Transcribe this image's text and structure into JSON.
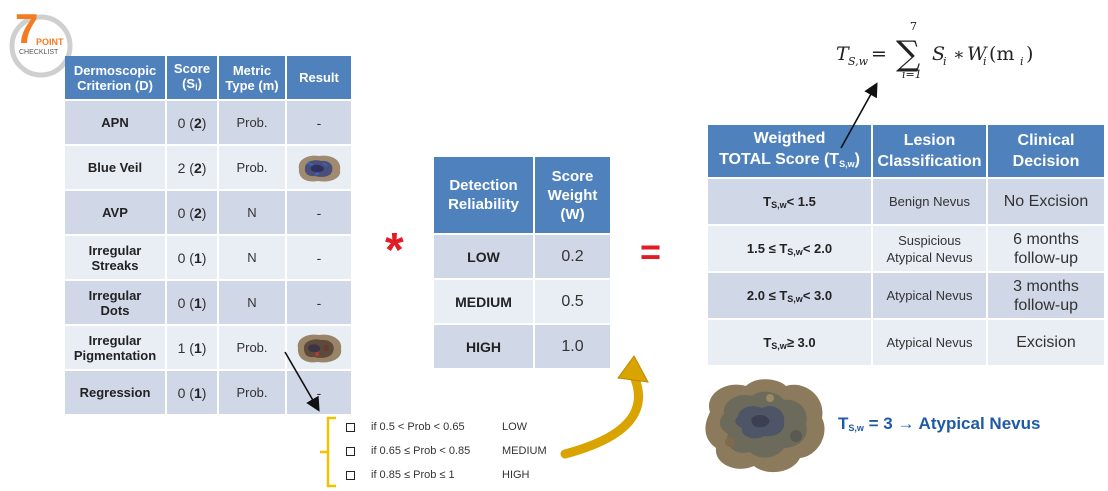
{
  "logo": {
    "number": "7",
    "word1": "POINT",
    "word2": "CHECKLIST"
  },
  "criteria_table": {
    "headers": {
      "criterion": [
        "Dermoscopic",
        "Criterion (D)"
      ],
      "score": [
        "Score",
        "(S",
        "i",
        ")"
      ],
      "metric": [
        "Metric",
        "Type (m)"
      ],
      "result": "Result"
    },
    "rows": [
      {
        "name": [
          "APN"
        ],
        "score": "0",
        "weight": "2",
        "metric": "Prob.",
        "result": "-"
      },
      {
        "name": [
          "Blue Veil"
        ],
        "score": "2",
        "weight": "2",
        "metric": "Prob.",
        "result": ""
      },
      {
        "name": [
          "AVP"
        ],
        "score": "0",
        "weight": "2",
        "metric": "N",
        "result": "-"
      },
      {
        "name": [
          "Irregular",
          "Streaks"
        ],
        "score": "0",
        "weight": "1",
        "metric": "N",
        "result": "-"
      },
      {
        "name": [
          "Irregular",
          "Dots"
        ],
        "score": "0",
        "weight": "1",
        "metric": "N",
        "result": "-"
      },
      {
        "name": [
          "Irregular",
          "Pigmentation"
        ],
        "score": "1",
        "weight": "1",
        "metric": "Prob.",
        "result": ""
      },
      {
        "name": [
          "Regression"
        ],
        "score": "0",
        "weight": "1",
        "metric": "Prob.",
        "result": "-"
      }
    ]
  },
  "operators": {
    "multiply": "*",
    "equals": "="
  },
  "weight_table": {
    "headers": {
      "reliability": [
        "Detection",
        "Reliability"
      ],
      "weight": [
        "Score",
        "Weight",
        "(W)"
      ]
    },
    "rows": [
      {
        "level": "LOW",
        "weight": "0.2"
      },
      {
        "level": "MEDIUM",
        "weight": "0.5"
      },
      {
        "level": "HIGH",
        "weight": "1.0"
      }
    ]
  },
  "prob_rules": [
    {
      "condition": "if 0.5 < Prob < 0.65",
      "level": "LOW"
    },
    {
      "condition": "if 0.65 ≤ Prob < 0.85",
      "level": "MEDIUM"
    },
    {
      "condition": "if 0.85 ≤ Prob ≤ 1",
      "level": "HIGH"
    }
  ],
  "formula": {
    "lhs": "T",
    "lhs_sub": "S,w",
    "eq": "=",
    "sum_top": "7",
    "sum_bottom": "i=1",
    "rhs": "S",
    "rhs_sub": "i",
    "star": "∗",
    "w": "W",
    "w_sub": "i",
    "arg": "(m",
    "arg_sub": "i",
    "close": ")"
  },
  "score_table": {
    "headers": {
      "total": [
        "Weigthed",
        "TOTAL Score (T",
        "S,w",
        ")"
      ],
      "classification": [
        "Lesion",
        "Classification"
      ],
      "decision": [
        "Clinical",
        "Decision"
      ]
    },
    "rows": [
      {
        "pre": "",
        "sub": "S,w",
        "post": "< 1.5",
        "classification": [
          "Benign Nevus"
        ],
        "decision": [
          "No Excision"
        ]
      },
      {
        "pre": "1.5 ≤ ",
        "sub": "S,w",
        "post": "< 2.0",
        "classification": [
          "Suspicious",
          "Atypical Nevus"
        ],
        "decision": [
          "6 months",
          "follow-up"
        ]
      },
      {
        "pre": "2.0 ≤ ",
        "sub": "S,w",
        "post": "< 3.0",
        "classification": [
          "Atypical Nevus"
        ],
        "decision": [
          "3 months",
          "follow-up"
        ]
      },
      {
        "pre": "",
        "sub": "S,w",
        "post": "≥ 3.0",
        "classification": [
          "Atypical Nevus"
        ],
        "decision": [
          "Excision"
        ]
      }
    ]
  },
  "result": {
    "t": "T",
    "sub": "S,w",
    "value": " = 3 ",
    "arrow": "→",
    "label": " Atypical Nevus"
  },
  "colors": {
    "header_blue": "#4f81bd",
    "row_dark": "#d0d8e8",
    "row_light": "#e9edf4",
    "operator_red": "#e31b23",
    "logo_orange": "#f47b20",
    "result_blue": "#1f5aa6",
    "bracket_yellow": "#f2c200"
  }
}
